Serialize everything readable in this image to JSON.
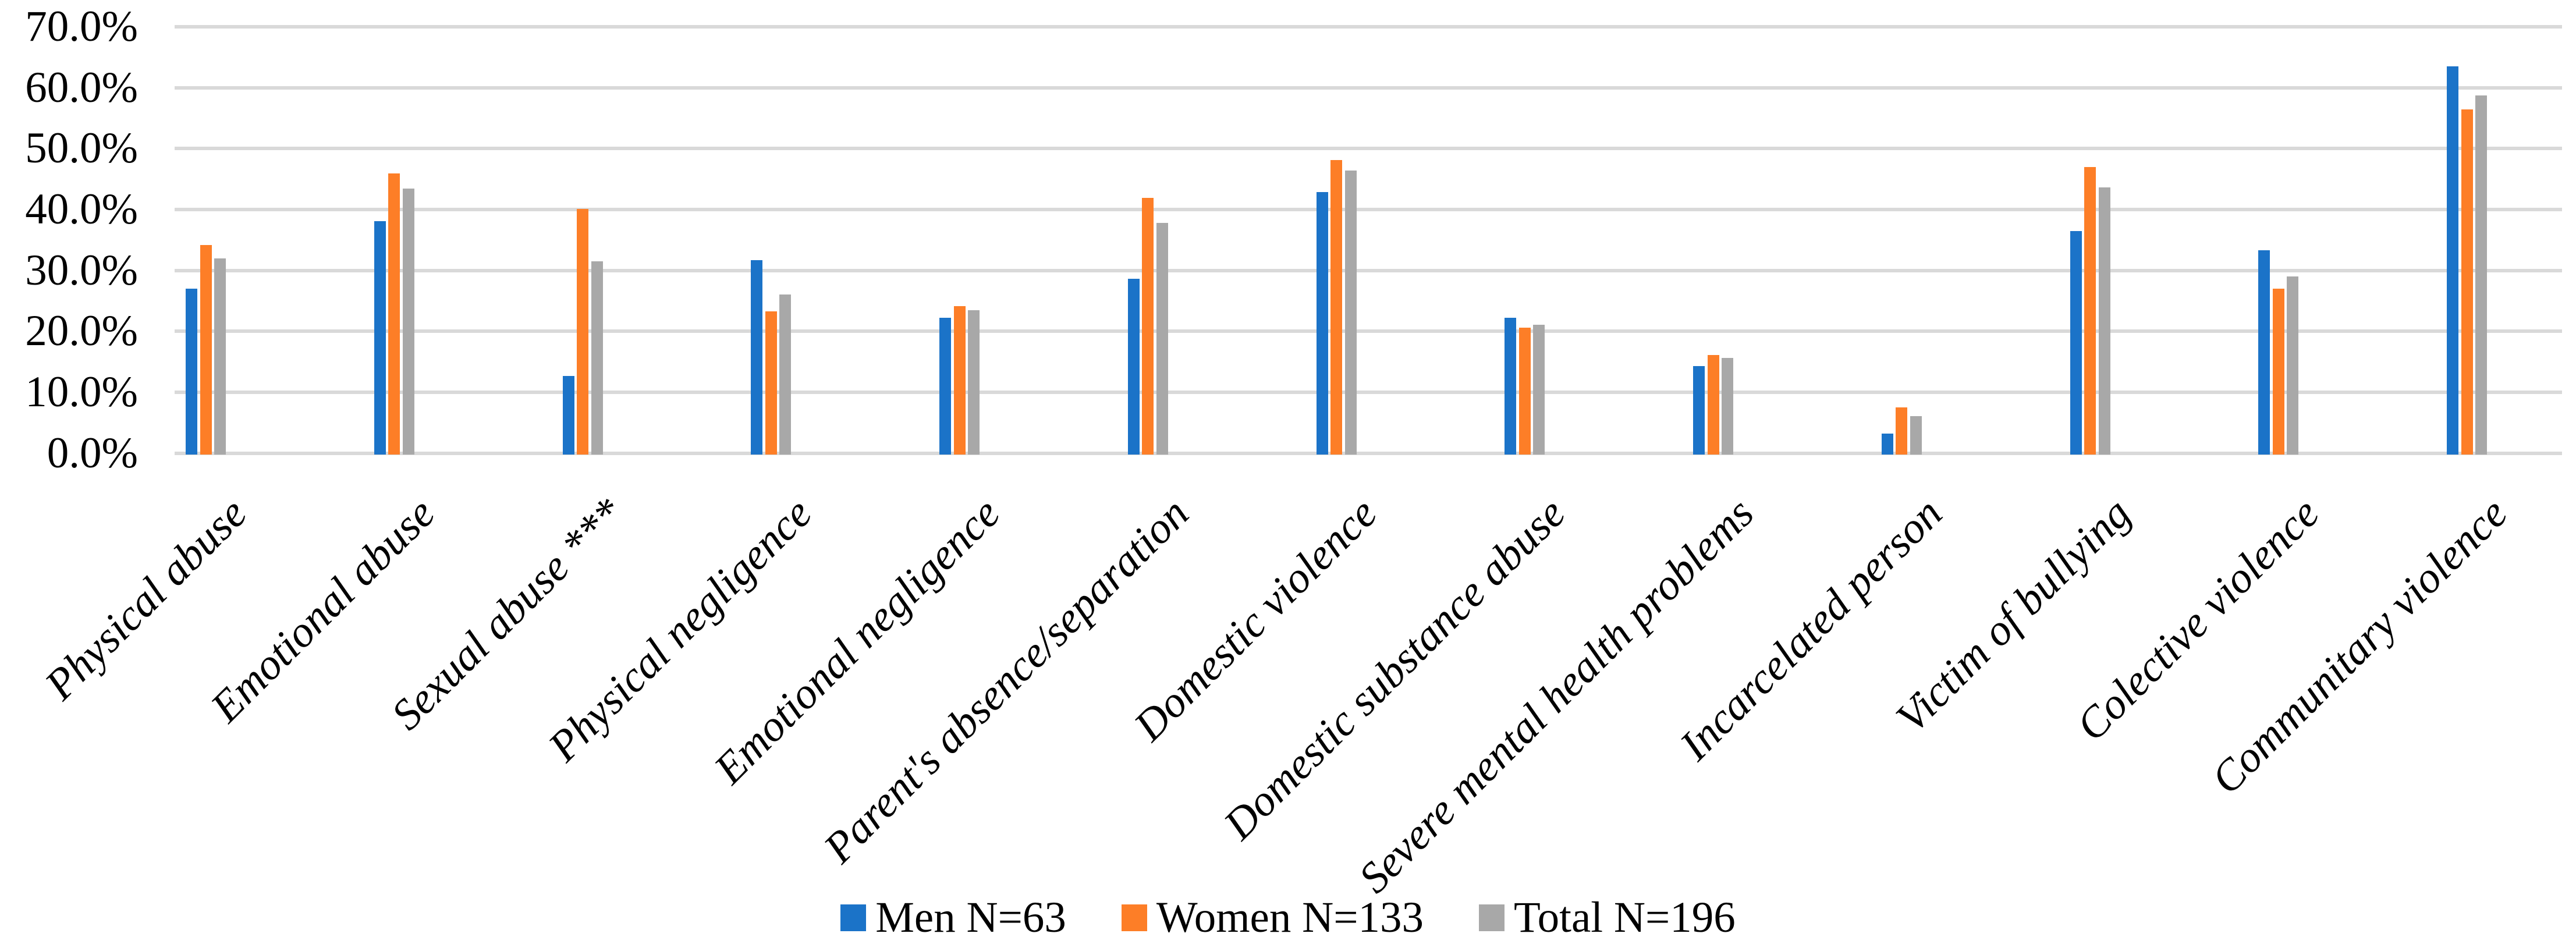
{
  "chart_data": {
    "type": "bar",
    "title": "",
    "xlabel": "",
    "ylabel": "",
    "categories": [
      "Physical abuse",
      "Emotional abuse",
      "Sexual abuse ***",
      "Physical negligence",
      "Emotional negligence",
      "Parent's absence/separation",
      "Domestic violence",
      "Domestic substance abuse",
      "Severe mental health problems",
      "Incarcelated person",
      "Victim of bullying",
      "Colective violence",
      "Communitary violence"
    ],
    "series": [
      {
        "name": "Men N=63",
        "color": "#1B73C8",
        "values": [
          27.0,
          38.1,
          12.7,
          31.7,
          22.2,
          28.6,
          42.9,
          22.2,
          14.3,
          3.2,
          36.5,
          33.3,
          63.5
        ]
      },
      {
        "name": "Women N=133",
        "color": "#FD7E27",
        "values": [
          34.2,
          45.9,
          40.1,
          23.3,
          24.1,
          41.9,
          48.1,
          20.6,
          16.1,
          7.5,
          47.0,
          27.0,
          56.4
        ]
      },
      {
        "name": "Total N=196",
        "color": "#A8A8A8",
        "values": [
          32.0,
          43.4,
          31.5,
          26.0,
          23.5,
          37.8,
          46.4,
          21.1,
          15.6,
          6.1,
          43.6,
          29.0,
          58.7
        ]
      }
    ],
    "ylim": [
      0,
      70
    ],
    "ytick_step": 10,
    "ytick_labels": [
      "0.0%",
      "10.0%",
      "20.0%",
      "30.0%",
      "40.0%",
      "50.0%",
      "60.0%",
      "70.0%"
    ],
    "value_format": "percent",
    "grid": true,
    "gridline_color": "#D9D9D9",
    "background_color": "#FFFFFF",
    "text_color": "#000000",
    "legend_position": "bottom",
    "category_label_rotation_deg": 45
  }
}
